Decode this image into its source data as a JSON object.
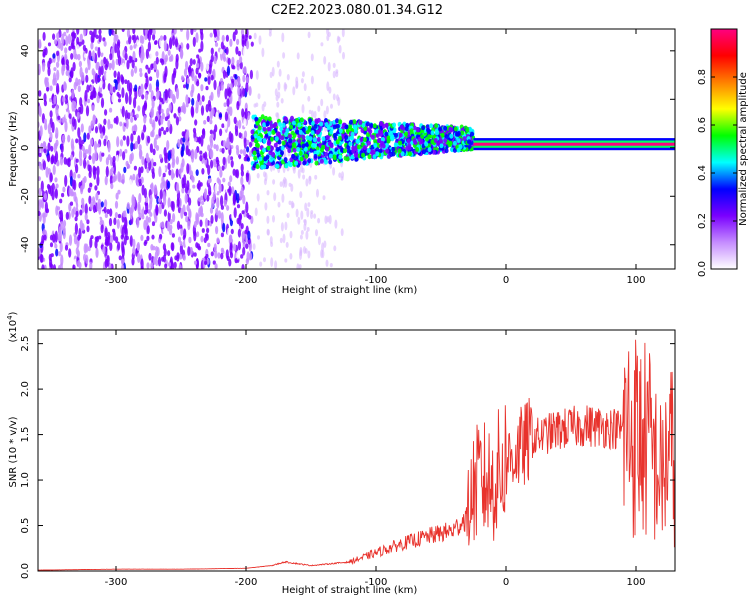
{
  "title": "C2E2.2023.080.01.34.G12",
  "chart_data": [
    {
      "type": "heatmap",
      "xlabel": "Height of straight line (km)",
      "ylabel": "Frequency (Hz)",
      "xlim": [
        -360,
        130
      ],
      "ylim": [
        -50,
        49
      ],
      "x_ticks": [
        -300,
        -200,
        -100,
        0,
        100
      ],
      "y_ticks": [
        -40,
        -20,
        0,
        20,
        40
      ],
      "colorbar": {
        "label": "Normalized spectral amplitude",
        "range": [
          0,
          1
        ],
        "ticks": [
          0.0,
          0.2,
          0.4,
          0.6,
          0.8
        ],
        "colors": [
          "#ffffff",
          "#c58cff",
          "#7a00ff",
          "#0000ff",
          "#00ffff",
          "#00ff00",
          "#ffff00",
          "#ff8000",
          "#ff0000",
          "#ff0080"
        ]
      },
      "regions": [
        {
          "x_range": [
            -360,
            -195
          ],
          "freq_range": [
            -50,
            49
          ],
          "amplitude": 0.15,
          "pattern": "noise"
        },
        {
          "x_range": [
            -195,
            -25
          ],
          "freq_range": [
            -10,
            12
          ],
          "amplitude": 0.35,
          "pattern": "band"
        },
        {
          "x_range": [
            -25,
            130
          ],
          "freq_range": [
            0,
            3
          ],
          "amplitude": 0.95,
          "pattern": "line"
        }
      ]
    },
    {
      "type": "line",
      "xlabel": "Height of straight line (km)",
      "ylabel": "SNR (10 * v/v)",
      "y_multiplier": "(x10",
      "y_multiplier_exp": "4",
      "multiplier_close": ")",
      "xlim": [
        -360,
        130
      ],
      "ylim": [
        0,
        2.65
      ],
      "x_ticks": [
        -300,
        -200,
        -100,
        0,
        100
      ],
      "y_ticks": [
        0.0,
        0.5,
        1.0,
        1.5,
        2.0,
        2.5
      ],
      "color": "#e8322c",
      "series": [
        {
          "x": [
            -360,
            -300,
            -250,
            -200,
            -180,
            -170,
            -150,
            -120,
            -100,
            -80,
            -60,
            -40,
            -30,
            -25,
            -20,
            -10,
            0,
            20,
            40,
            60,
            80,
            90,
            100,
            110,
            120,
            125,
            130
          ],
          "y": [
            0.01,
            0.02,
            0.02,
            0.03,
            0.06,
            0.1,
            0.06,
            0.1,
            0.2,
            0.3,
            0.38,
            0.45,
            0.6,
            0.9,
            1.0,
            0.95,
            1.2,
            1.45,
            1.55,
            1.6,
            1.58,
            1.55,
            1.5,
            1.4,
            1.0,
            1.35,
            1.2
          ]
        }
      ]
    }
  ]
}
